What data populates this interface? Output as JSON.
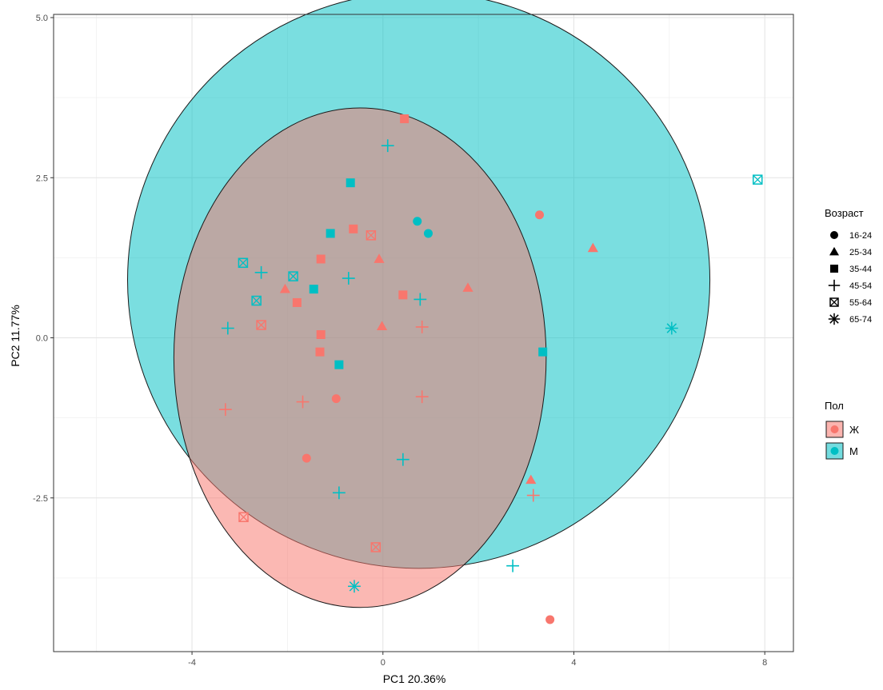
{
  "chart_data": {
    "type": "scatter",
    "title": "",
    "xlabel": "PC1 20.36%",
    "ylabel": "PC2 11.77%",
    "xlim": [
      -6.9,
      8.6
    ],
    "ylim": [
      -4.9,
      5.05
    ],
    "x_ticks": [
      -4,
      0,
      4,
      8
    ],
    "x_tick_labels": [
      "-4",
      "0",
      "4",
      "8"
    ],
    "y_ticks": [
      5.0,
      2.5,
      0.0,
      -2.5
    ],
    "y_tick_labels": [
      "5.0",
      "2.5",
      "0.0",
      "-2.5"
    ],
    "grid": true,
    "legend_position": "right",
    "colors": {
      "Ж": "#F8766D",
      "М": "#00BFC4"
    },
    "shape_legend": {
      "title": "Возраст",
      "entries": [
        {
          "label": "16-24",
          "shape": "circle"
        },
        {
          "label": "25-34",
          "shape": "triangle"
        },
        {
          "label": "35-44",
          "shape": "square"
        },
        {
          "label": "45-54",
          "shape": "plus"
        },
        {
          "label": "55-64",
          "shape": "square-cross"
        },
        {
          "label": "65-74",
          "shape": "asterisk"
        }
      ]
    },
    "color_legend": {
      "title": "Пол",
      "entries": [
        {
          "label": "Ж",
          "color": "#F8766D"
        },
        {
          "label": "М",
          "color": "#00BFC4"
        }
      ]
    },
    "ellipses": [
      {
        "group": "М",
        "color": "#00BFC4",
        "fill_opacity": 0.52,
        "cx": 0.75,
        "cy": 0.9,
        "rx": 6.1,
        "ry": 4.5
      },
      {
        "group": "Ж",
        "color": "#F8766D",
        "fill_opacity": 0.52,
        "cx": -0.48,
        "cy": -0.31,
        "rx": 3.9,
        "ry": 3.9
      }
    ],
    "points": [
      {
        "x": 0.45,
        "y": 3.42,
        "group": "Ж",
        "age": "35-44"
      },
      {
        "x": -0.62,
        "y": 1.7,
        "group": "Ж",
        "age": "35-44"
      },
      {
        "x": -1.3,
        "y": 1.23,
        "group": "Ж",
        "age": "35-44"
      },
      {
        "x": -1.8,
        "y": 0.55,
        "group": "Ж",
        "age": "35-44"
      },
      {
        "x": 0.42,
        "y": 0.67,
        "group": "Ж",
        "age": "35-44"
      },
      {
        "x": -1.3,
        "y": 0.05,
        "group": "Ж",
        "age": "35-44"
      },
      {
        "x": -1.32,
        "y": -0.22,
        "group": "Ж",
        "age": "35-44"
      },
      {
        "x": 3.28,
        "y": 1.92,
        "group": "Ж",
        "age": "16-24"
      },
      {
        "x": -0.98,
        "y": -0.95,
        "group": "Ж",
        "age": "16-24"
      },
      {
        "x": -1.6,
        "y": -1.88,
        "group": "Ж",
        "age": "16-24"
      },
      {
        "x": 3.5,
        "y": -4.4,
        "group": "Ж",
        "age": "16-24"
      },
      {
        "x": 4.4,
        "y": 1.4,
        "group": "Ж",
        "age": "25-34"
      },
      {
        "x": -0.08,
        "y": 1.23,
        "group": "Ж",
        "age": "25-34"
      },
      {
        "x": -2.05,
        "y": 0.76,
        "group": "Ж",
        "age": "25-34"
      },
      {
        "x": 1.78,
        "y": 0.78,
        "group": "Ж",
        "age": "25-34"
      },
      {
        "x": -0.02,
        "y": 0.18,
        "group": "Ж",
        "age": "25-34"
      },
      {
        "x": 3.1,
        "y": -2.22,
        "group": "Ж",
        "age": "25-34"
      },
      {
        "x": -3.3,
        "y": -1.12,
        "group": "Ж",
        "age": "45-54"
      },
      {
        "x": -1.68,
        "y": -1.0,
        "group": "Ж",
        "age": "45-54"
      },
      {
        "x": 0.82,
        "y": 0.17,
        "group": "Ж",
        "age": "45-54"
      },
      {
        "x": 0.82,
        "y": -0.92,
        "group": "Ж",
        "age": "45-54"
      },
      {
        "x": 3.15,
        "y": -2.46,
        "group": "Ж",
        "age": "45-54"
      },
      {
        "x": -0.25,
        "y": 1.6,
        "group": "Ж",
        "age": "55-64"
      },
      {
        "x": -2.55,
        "y": 0.2,
        "group": "Ж",
        "age": "55-64"
      },
      {
        "x": -2.92,
        "y": -2.8,
        "group": "Ж",
        "age": "55-64"
      },
      {
        "x": -0.15,
        "y": -3.27,
        "group": "Ж",
        "age": "55-64"
      },
      {
        "x": 0.72,
        "y": 1.82,
        "group": "М",
        "age": "16-24"
      },
      {
        "x": 0.95,
        "y": 1.63,
        "group": "М",
        "age": "16-24"
      },
      {
        "x": -0.68,
        "y": 2.42,
        "group": "М",
        "age": "35-44"
      },
      {
        "x": -1.1,
        "y": 1.63,
        "group": "М",
        "age": "35-44"
      },
      {
        "x": -1.45,
        "y": 0.76,
        "group": "М",
        "age": "35-44"
      },
      {
        "x": -0.92,
        "y": -0.42,
        "group": "М",
        "age": "35-44"
      },
      {
        "x": 3.35,
        "y": -0.22,
        "group": "М",
        "age": "35-44"
      },
      {
        "x": 0.1,
        "y": 3.0,
        "group": "М",
        "age": "45-54"
      },
      {
        "x": -2.55,
        "y": 1.02,
        "group": "М",
        "age": "45-54"
      },
      {
        "x": -0.72,
        "y": 0.93,
        "group": "М",
        "age": "45-54"
      },
      {
        "x": 0.78,
        "y": 0.6,
        "group": "М",
        "age": "45-54"
      },
      {
        "x": -3.25,
        "y": 0.15,
        "group": "М",
        "age": "45-54"
      },
      {
        "x": 0.42,
        "y": -1.9,
        "group": "М",
        "age": "45-54"
      },
      {
        "x": -0.92,
        "y": -2.42,
        "group": "М",
        "age": "45-54"
      },
      {
        "x": 2.72,
        "y": -3.56,
        "group": "М",
        "age": "45-54"
      },
      {
        "x": 7.85,
        "y": 2.47,
        "group": "М",
        "age": "55-64"
      },
      {
        "x": -2.93,
        "y": 1.17,
        "group": "М",
        "age": "55-64"
      },
      {
        "x": -1.88,
        "y": 0.96,
        "group": "М",
        "age": "55-64"
      },
      {
        "x": -2.65,
        "y": 0.58,
        "group": "М",
        "age": "55-64"
      },
      {
        "x": 6.05,
        "y": 0.15,
        "group": "М",
        "age": "65-74"
      },
      {
        "x": -0.6,
        "y": -3.88,
        "group": "М",
        "age": "65-74"
      }
    ]
  }
}
